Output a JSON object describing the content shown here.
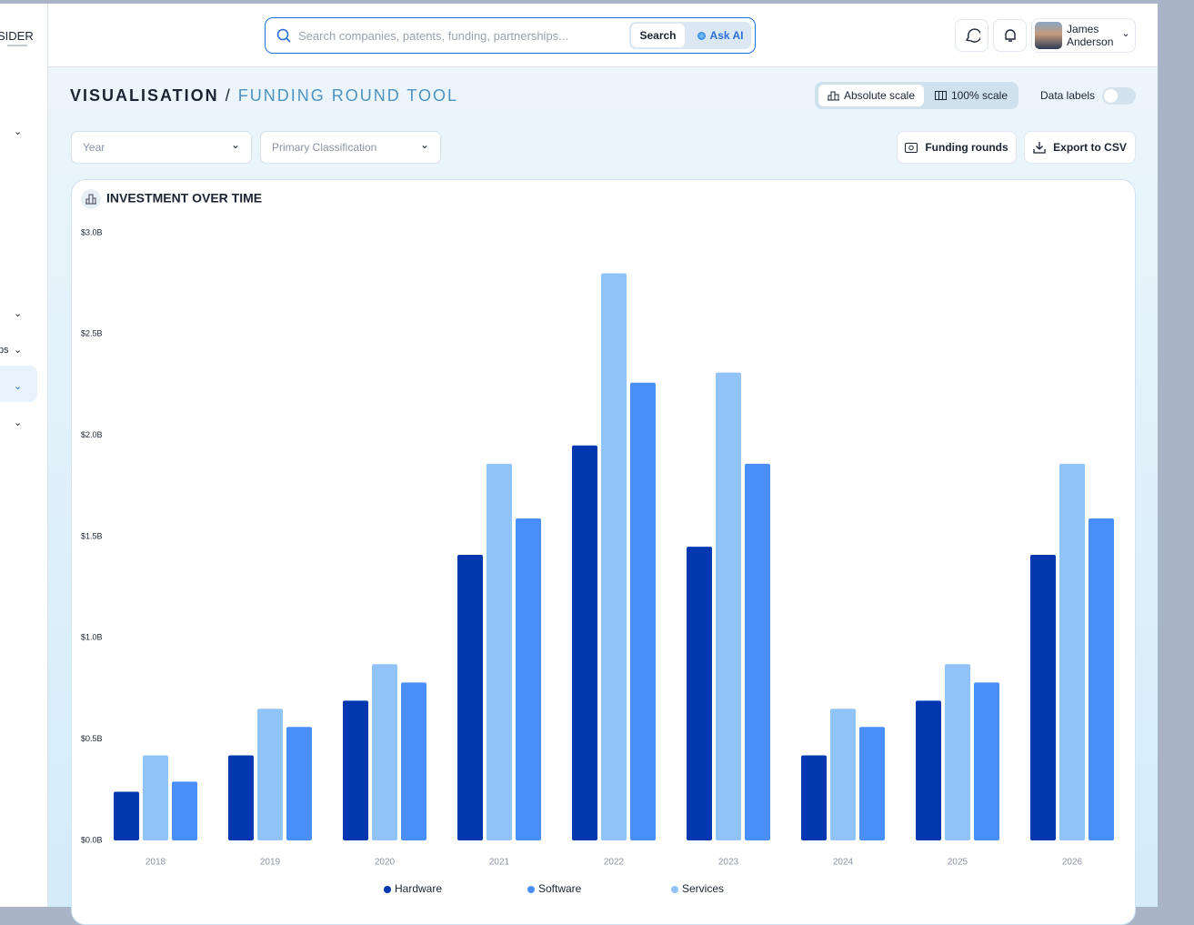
{
  "sidebar": {
    "logo": "SIDER",
    "item": "ps"
  },
  "header": {
    "search_placeholder": "Search companies, patents, funding, partnerships...",
    "search_button": "Search",
    "ask_ai": "Ask AI",
    "user_first": "James",
    "user_last": "Anderson"
  },
  "breadcrumb": {
    "section": "VISUALISATION",
    "separator": "/",
    "page": "FUNDING ROUND TOOL"
  },
  "scale_toggle": {
    "absolute": "Absolute scale",
    "percent": "100% scale"
  },
  "data_labels": "Data labels",
  "filters": [
    "Year",
    "Primary Classification"
  ],
  "actions": [
    "Funding rounds",
    "Export to CSV"
  ],
  "chart_data": {
    "type": "bar",
    "title": "INVESTMENT OVER TIME",
    "categories": [
      "2018",
      "2019",
      "2020",
      "2021",
      "2022",
      "2023",
      "2024",
      "2025",
      "2026"
    ],
    "series": [
      {
        "name": "Hardware",
        "color": "#0237b0",
        "values": [
          0.24,
          0.42,
          0.69,
          1.41,
          1.95,
          1.45,
          0.42,
          0.69,
          1.41
        ]
      },
      {
        "name": "Software",
        "color": "#4a8ff7",
        "values": [
          0.29,
          0.56,
          0.78,
          1.59,
          2.26,
          1.86,
          0.56,
          0.78,
          1.59
        ]
      },
      {
        "name": "Services",
        "color": "#90c3f8",
        "values": [
          0.42,
          0.65,
          0.87,
          1.86,
          2.8,
          2.31,
          0.65,
          0.87,
          1.86
        ]
      }
    ],
    "ylim": [
      0,
      3
    ],
    "yticks": [
      {
        "value": 0,
        "label": "$0.0B"
      },
      {
        "value": 0.5,
        "label": "$0.5B"
      },
      {
        "value": 1,
        "label": "$1.0B"
      },
      {
        "value": 1.5,
        "label": "$1.5B"
      },
      {
        "value": 2,
        "label": "$2.0B"
      },
      {
        "value": 2.5,
        "label": "$2.5B"
      },
      {
        "value": 3,
        "label": "$3.0B"
      }
    ],
    "grid": false
  }
}
